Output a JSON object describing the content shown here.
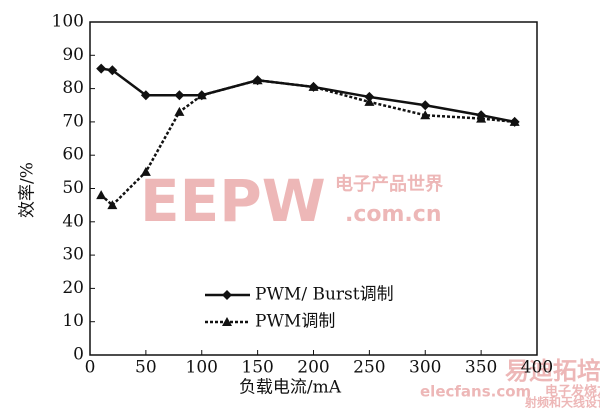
{
  "chart_data": {
    "type": "line",
    "x_label": "负载电流/mA",
    "y_label": "效率/%",
    "x": [
      10,
      20,
      50,
      80,
      100,
      150,
      200,
      250,
      300,
      350,
      380
    ],
    "series": [
      {
        "name": "PWM/ Burst调制",
        "color": "#111111",
        "style": "solid",
        "marker": "diamond",
        "values": [
          86,
          85.5,
          78,
          78,
          78,
          82.5,
          80.5,
          77.5,
          75,
          72,
          70
        ]
      },
      {
        "name": "PWM调制",
        "color": "#111111",
        "style": "dotted",
        "marker": "triangle",
        "values": [
          48,
          45,
          55,
          73,
          78,
          82.5,
          80.5,
          76,
          72,
          71,
          70
        ]
      }
    ],
    "xlim": [
      0,
      400
    ],
    "xticks": [
      0,
      50,
      100,
      150,
      200,
      250,
      300,
      350,
      400
    ],
    "ylim": [
      0,
      100
    ],
    "yticks": [
      0,
      10,
      20,
      30,
      40,
      50,
      60,
      70,
      80,
      90,
      100
    ],
    "legend": "lower-left",
    "watermarks": [
      "EEPW",
      "电子产品世界",
      ".com.cn",
      "elecfans.com",
      "电子发烧友",
      "易迪拓培训",
      "射频和天线设计专家"
    ]
  }
}
